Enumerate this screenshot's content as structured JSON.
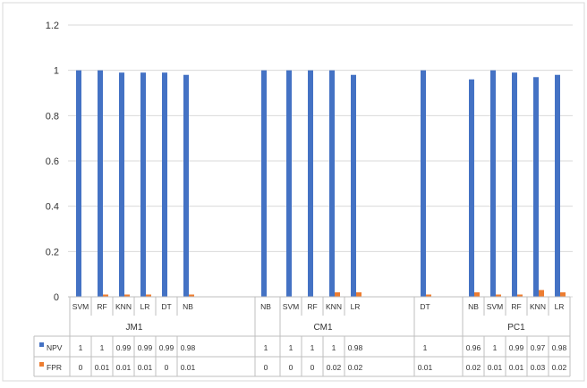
{
  "chart_data": {
    "type": "bar",
    "title": "",
    "xlabel": "",
    "ylabel": "",
    "ylim": [
      0,
      1.2
    ],
    "yticks": [
      "0",
      "0.2",
      "0.4",
      "0.6",
      "0.8",
      "1",
      "1.2"
    ],
    "grid": true,
    "legend_placement": "left of data table",
    "groups": [
      {
        "name": "JM1",
        "categories": [
          "SVM",
          "RF",
          "KNN",
          "LR",
          "DT",
          "NB"
        ]
      },
      {
        "name": "",
        "categories": [
          "NB"
        ]
      },
      {
        "name": "CM1",
        "categories": [
          "SVM",
          "RF",
          "KNN",
          "LR"
        ]
      },
      {
        "name": "",
        "categories": [
          "DT"
        ]
      },
      {
        "name": "PC1",
        "categories": [
          "NB",
          "SVM",
          "RF",
          "KNN",
          "LR"
        ]
      }
    ],
    "categories": [
      "SVM",
      "RF",
      "KNN",
      "LR",
      "DT",
      "NB",
      "NB",
      "SVM",
      "RF",
      "KNN",
      "LR",
      "DT",
      "NB",
      "SVM",
      "RF",
      "KNN",
      "LR"
    ],
    "series": [
      {
        "name": "NPV",
        "color": "#4472c4",
        "values": [
          1,
          1,
          0.99,
          0.99,
          0.99,
          0.98,
          1,
          1,
          1,
          1,
          0.98,
          1,
          0.96,
          1,
          0.99,
          0.97,
          0.98
        ]
      },
      {
        "name": "FPR",
        "color": "#ed7d31",
        "values": [
          0,
          0.01,
          0.01,
          0.01,
          0,
          0.01,
          0,
          0,
          0,
          0.02,
          0.02,
          0.01,
          0.02,
          0.01,
          0.01,
          0.03,
          0.02
        ]
      }
    ]
  }
}
